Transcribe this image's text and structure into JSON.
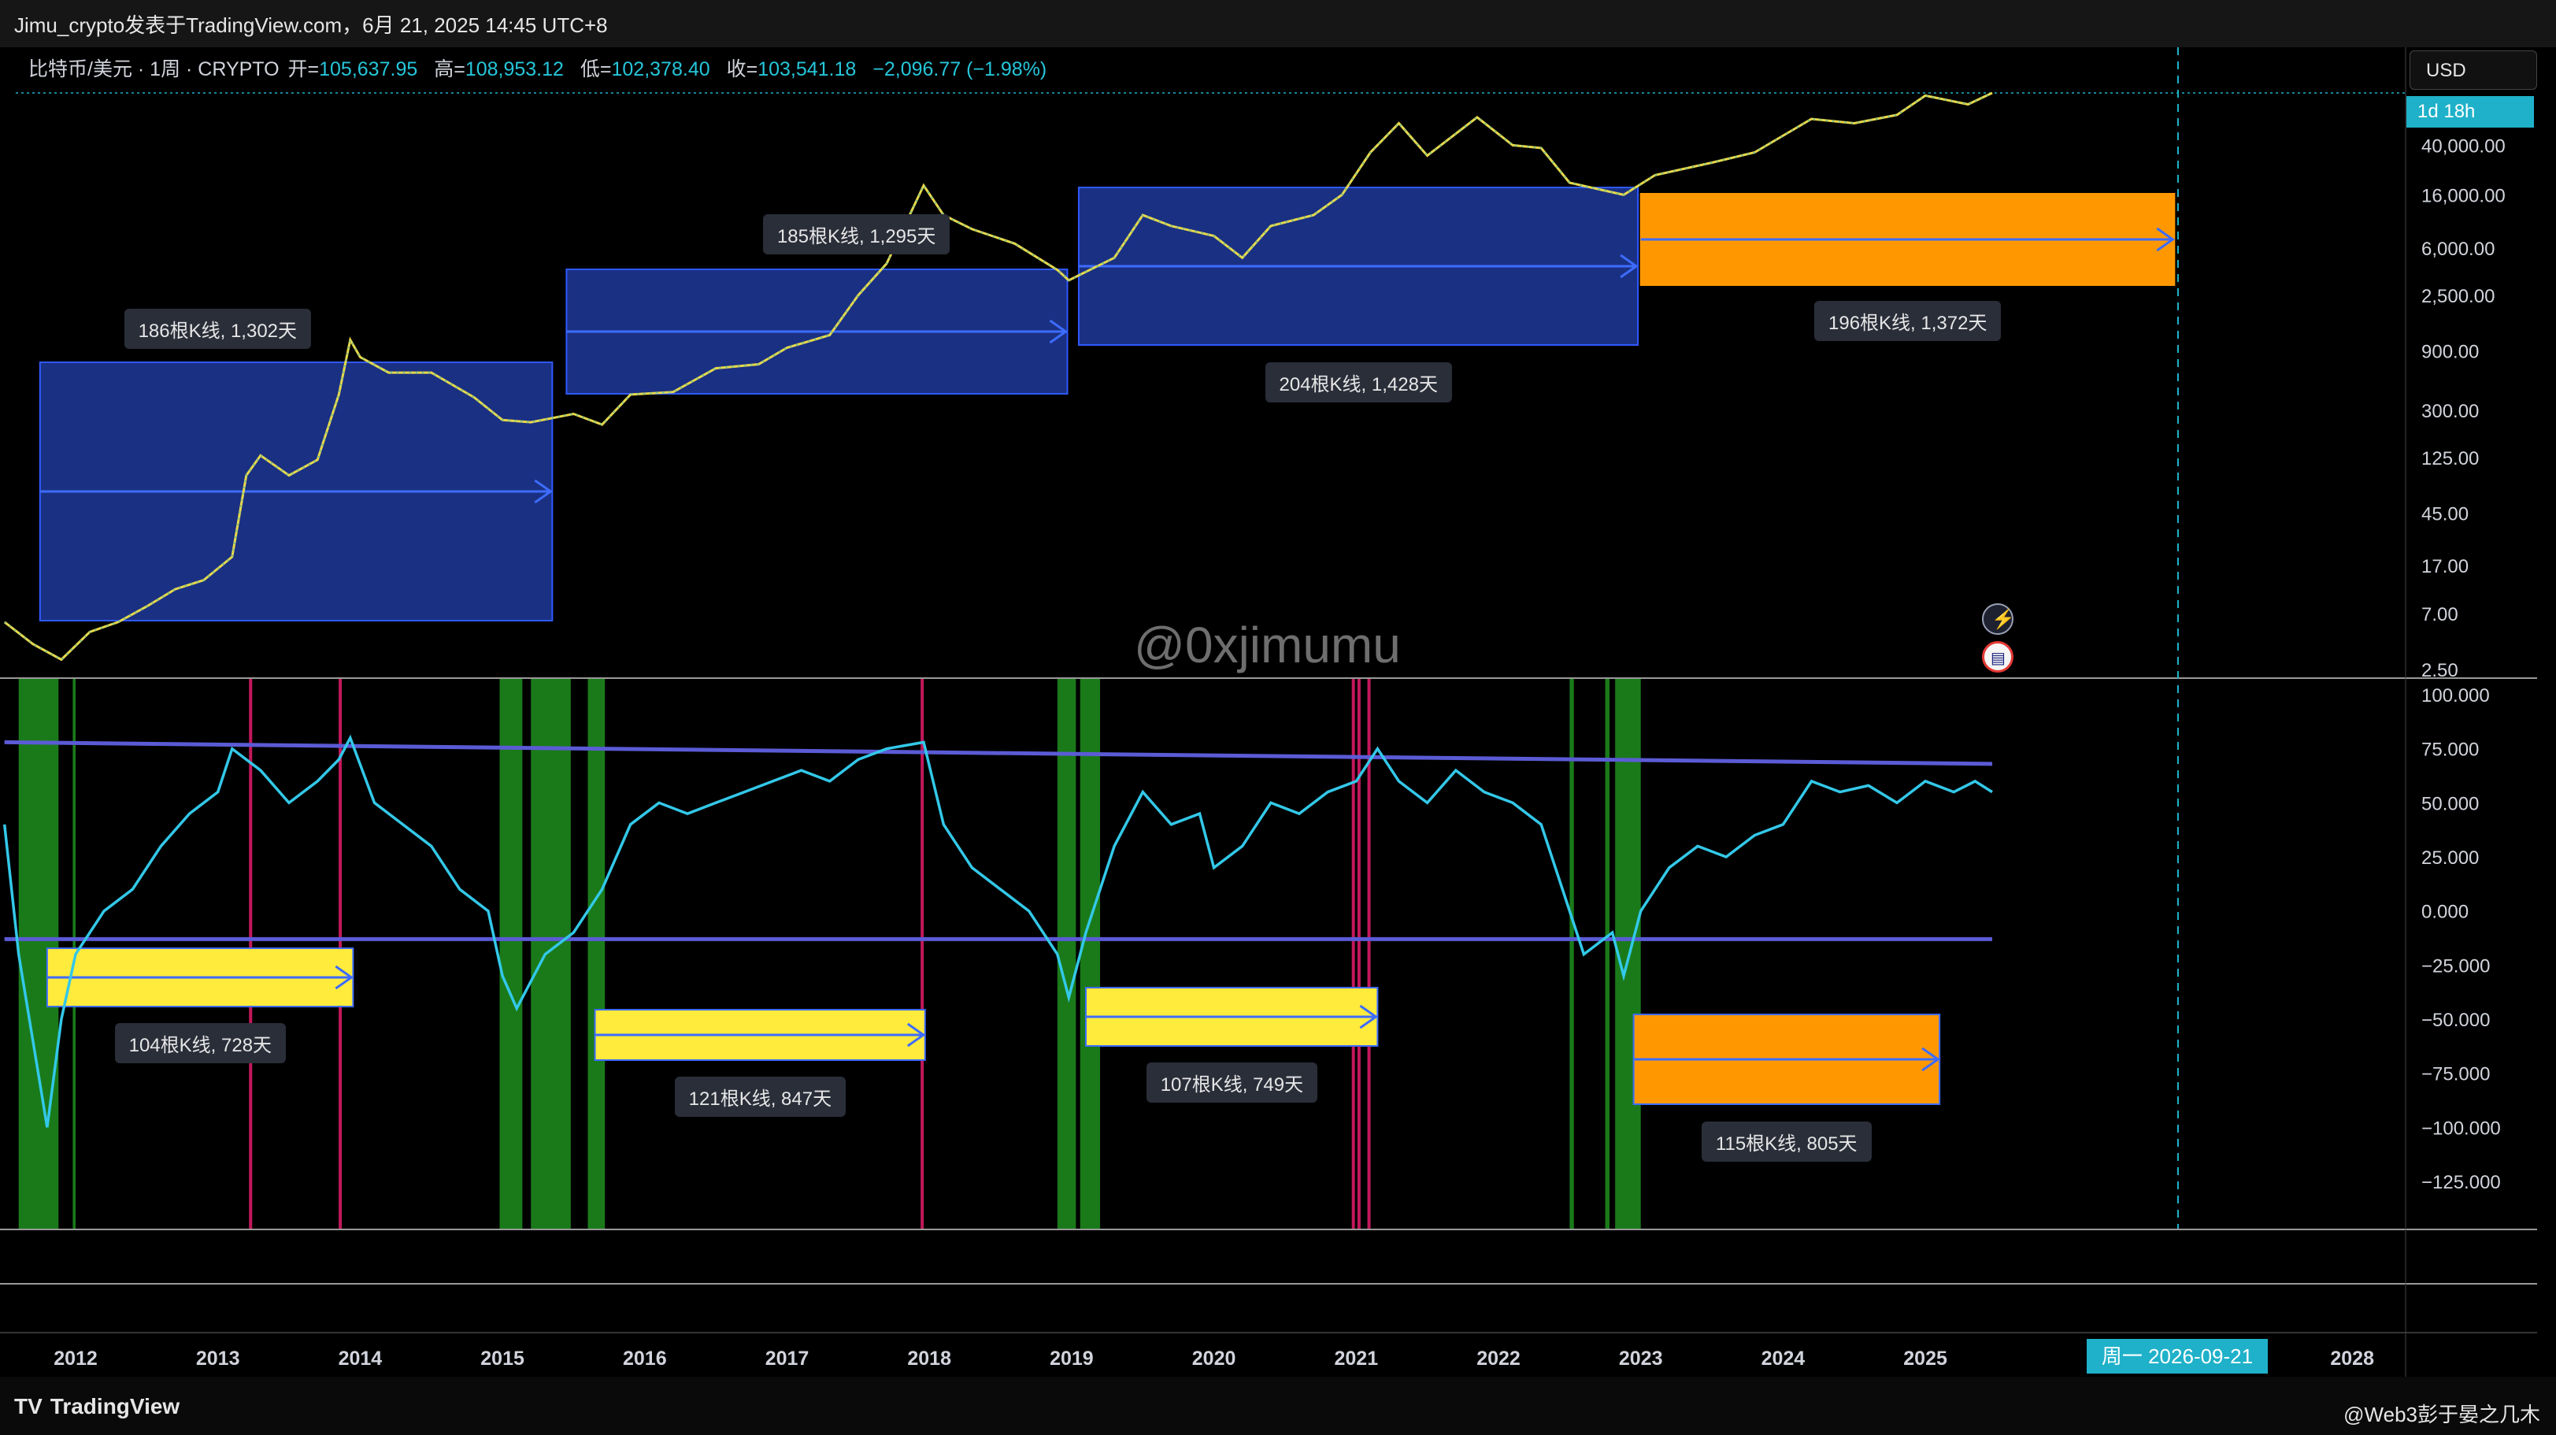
{
  "header": {
    "attribution": "Jimu_crypto发表于TradingView.com，6月 21, 2025 14:45 UTC+8",
    "symbol": "比特币/美元 · 1周 · CRYPTO",
    "open_label": "开=",
    "open": "105,637.95",
    "high_label": "高=",
    "high": "108,953.12",
    "low_label": "低=",
    "low": "102,378.40",
    "close_label": "收=",
    "close": "103,541.18",
    "change": "−2,096.77 (−1.98%)",
    "currency": "USD",
    "countdown": "1d 18h"
  },
  "watermark": "@0xjimumu",
  "footer": {
    "logo_text": "TradingView",
    "credit": "@Web3彭于晏之几木",
    "date_flag": "周一 2026-09-21"
  },
  "colors": {
    "candle_up": "#e6d84a",
    "candle_down": "#2bb3c0",
    "osc_line": "#33c8e8",
    "trend_line": "#5b5bd6",
    "blue_box": "#1d3591",
    "yellow_box": "#ffeb3b",
    "orange_box": "#ff9800",
    "green_band": "#1a7a1a",
    "magenta_line": "#c2185b",
    "arrow": "#3d6cff"
  },
  "chart_data": [
    {
      "type": "line",
      "title": "",
      "subtitle": "比特币/美元 · 1周 · CRYPTO",
      "scale": "log",
      "y_ticks": [
        "40,000.00",
        "16,000.00",
        "6,000.00",
        "2,500.00",
        "900.00",
        "300.00",
        "125.00",
        "45.00",
        "17.00",
        "7.00",
        "2.50"
      ],
      "x_ticks": [
        "2012",
        "2013",
        "2014",
        "2015",
        "2016",
        "2017",
        "2018",
        "2019",
        "2020",
        "2021",
        "2022",
        "2023",
        "2024",
        "2025",
        "2028"
      ],
      "series": [
        {
          "x": [
            2011.5,
            2011.7,
            2011.9,
            2012.1,
            2012.3,
            2012.5,
            2012.7,
            2012.9,
            2013.1,
            2013.2,
            2013.3,
            2013.5,
            2013.7,
            2013.85,
            2013.93,
            2014.0,
            2014.2,
            2014.5,
            2014.8,
            2015.0,
            2015.2,
            2015.5,
            2015.7,
            2015.9,
            2016.2,
            2016.5,
            2016.8,
            2017.0,
            2017.3,
            2017.5,
            2017.7,
            2017.96,
            2018.1,
            2018.3,
            2018.6,
            2018.9,
            2018.98,
            2019.3,
            2019.5,
            2019.7,
            2020.0,
            2020.2,
            2020.4,
            2020.7,
            2020.9,
            2021.1,
            2021.3,
            2021.5,
            2021.85,
            2022.1,
            2022.3,
            2022.5,
            2022.88,
            2023.1,
            2023.5,
            2023.8,
            2024.2,
            2024.5,
            2024.8,
            2025.0,
            2025.3,
            2025.47
          ],
          "values": [
            6,
            4,
            3,
            5,
            6,
            8,
            11,
            13,
            20,
            90,
            130,
            90,
            120,
            400,
            1100,
            800,
            600,
            600,
            380,
            250,
            240,
            280,
            230,
            400,
            420,
            650,
            700,
            950,
            1200,
            2500,
            4500,
            19000,
            11000,
            8500,
            6500,
            4000,
            3300,
            5000,
            11000,
            9000,
            7500,
            5000,
            9000,
            11000,
            16000,
            35000,
            60000,
            33000,
            67000,
            40000,
            38000,
            20000,
            16000,
            23000,
            29000,
            35000,
            65000,
            60000,
            70000,
            100000,
            85000,
            105000
          ]
        }
      ],
      "boxes": [
        {
          "kind": "blue",
          "from": 2011.75,
          "to": 2015.35,
          "label": "186根K线, 1,302天"
        },
        {
          "kind": "blue",
          "from": 2015.45,
          "to": 2018.97,
          "label": "185根K线, 1,295天"
        },
        {
          "kind": "blue",
          "from": 2019.05,
          "to": 2022.98,
          "label": "204根K线, 1,428天"
        },
        {
          "kind": "orange",
          "from": 2023.0,
          "to": 2026.75,
          "label": "196根K线, 1,372天"
        }
      ]
    },
    {
      "type": "line",
      "title": "",
      "y_ticks": [
        "100.000",
        "75.000",
        "50.000",
        "25.000",
        "0.000",
        "−25.000",
        "−50.000",
        "−75.000",
        "−100.000",
        "−125.000"
      ],
      "ylim": [
        -135,
        110
      ],
      "series": [
        {
          "x": [
            2011.5,
            2011.6,
            2011.7,
            2011.8,
            2011.9,
            2012.0,
            2012.2,
            2012.4,
            2012.6,
            2012.8,
            2013.0,
            2013.1,
            2013.2,
            2013.3,
            2013.5,
            2013.7,
            2013.85,
            2013.93,
            2014.1,
            2014.3,
            2014.5,
            2014.7,
            2014.9,
            2015.0,
            2015.1,
            2015.3,
            2015.5,
            2015.7,
            2015.9,
            2016.1,
            2016.3,
            2016.5,
            2016.7,
            2016.9,
            2017.1,
            2017.3,
            2017.5,
            2017.7,
            2017.96,
            2018.1,
            2018.3,
            2018.5,
            2018.7,
            2018.9,
            2018.98,
            2019.1,
            2019.3,
            2019.5,
            2019.7,
            2019.9,
            2020.0,
            2020.2,
            2020.4,
            2020.6,
            2020.8,
            2021.0,
            2021.15,
            2021.3,
            2021.5,
            2021.7,
            2021.9,
            2022.1,
            2022.3,
            2022.45,
            2022.6,
            2022.8,
            2022.88,
            2023.0,
            2023.2,
            2023.4,
            2023.6,
            2023.8,
            2024.0,
            2024.2,
            2024.4,
            2024.6,
            2024.8,
            2025.0,
            2025.2,
            2025.35,
            2025.47
          ],
          "values": [
            40,
            -20,
            -60,
            -100,
            -50,
            -20,
            0,
            10,
            30,
            45,
            55,
            75,
            70,
            65,
            50,
            60,
            70,
            80,
            50,
            40,
            30,
            10,
            0,
            -30,
            -45,
            -20,
            -10,
            10,
            40,
            50,
            45,
            50,
            55,
            60,
            65,
            60,
            70,
            75,
            78,
            40,
            20,
            10,
            0,
            -20,
            -40,
            -10,
            30,
            55,
            40,
            45,
            20,
            30,
            50,
            45,
            55,
            60,
            75,
            60,
            50,
            65,
            55,
            50,
            40,
            10,
            -20,
            -10,
            -30,
            0,
            20,
            30,
            25,
            35,
            40,
            60,
            55,
            58,
            50,
            60,
            55,
            60,
            55
          ]
        }
      ],
      "trend_lines": [
        {
          "name": "upper",
          "from": [
            2011.5,
            78
          ],
          "to": [
            2025.47,
            68
          ]
        },
        {
          "name": "lower",
          "from": [
            2011.5,
            -13
          ],
          "to": [
            2025.47,
            -13
          ]
        }
      ],
      "boxes": [
        {
          "kind": "yellow",
          "from": 2011.8,
          "to": 2013.95,
          "label": "104根K线, 728天"
        },
        {
          "kind": "yellow",
          "from": 2015.65,
          "to": 2017.97,
          "label": "121根K线, 847天"
        },
        {
          "kind": "yellow",
          "from": 2019.1,
          "to": 2021.15,
          "label": "107根K线, 749天"
        },
        {
          "kind": "orange",
          "from": 2022.95,
          "to": 2025.1,
          "label": "115根K线, 805天"
        }
      ]
    }
  ]
}
